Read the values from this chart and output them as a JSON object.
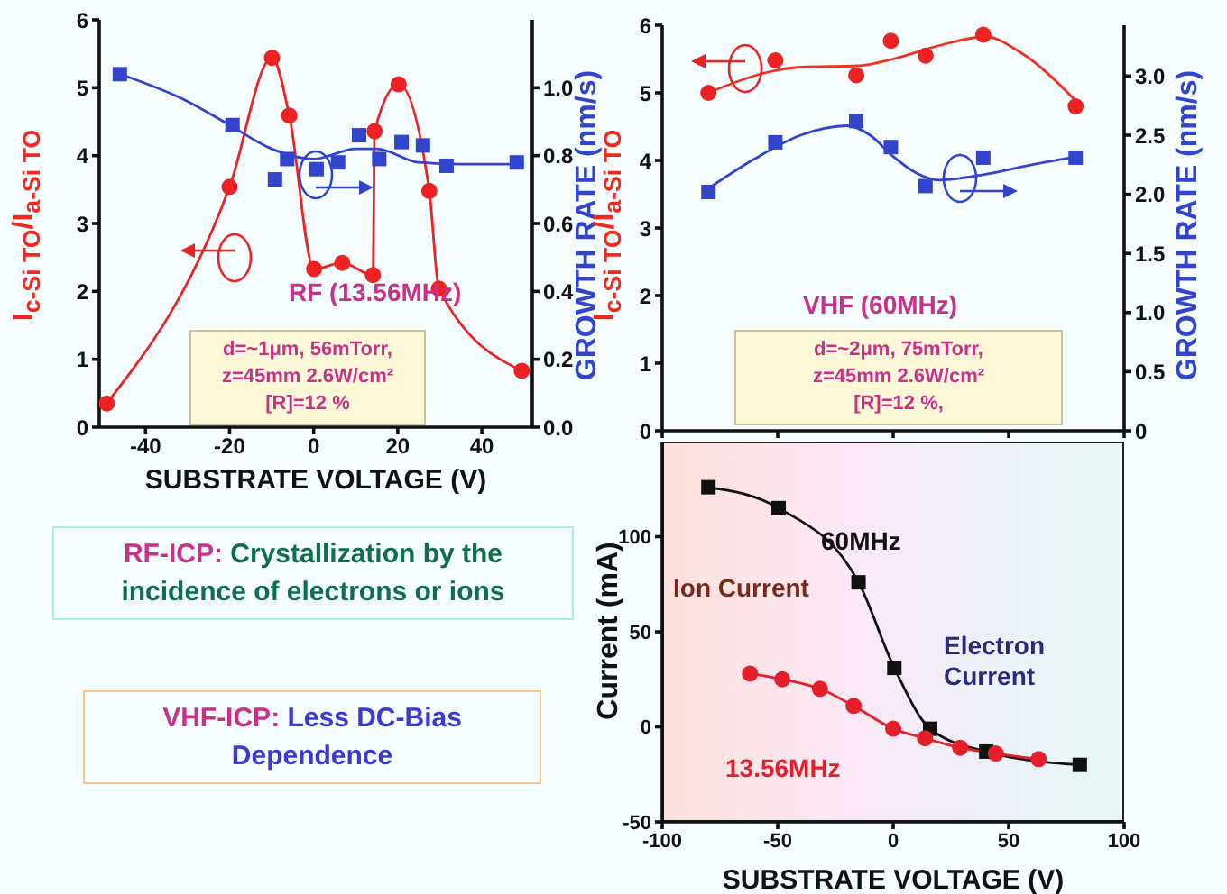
{
  "chart_data": [
    {
      "type": "line",
      "xlabel": "SUBSTRATE VOLTAGE (V)",
      "ylabel": "I$_{c-Si TO}$/I$_{a-Si TO}$",
      "y2label": "GROWTH RATE (nm/s)",
      "xlim": [
        -51,
        52
      ],
      "xticks": [
        -40,
        -20,
        0,
        20,
        40
      ],
      "ylim": [
        0,
        6
      ],
      "yticks": [
        0,
        1,
        2,
        3,
        4,
        5,
        6
      ],
      "y2lim": [
        0,
        1.2
      ],
      "y2ticks": [
        {
          "value": 0,
          "label": "0.0"
        },
        0.2,
        0.4,
        0.6,
        0.8,
        {
          "value": 1,
          "label": "1.0"
        }
      ],
      "series": [
        {
          "type": "line",
          "marker": "circle",
          "color": "#ee2222",
          "x": [
            -49.2,
            -20,
            -9.9,
            -5.8,
            0.1,
            6.8,
            14.1,
            14.5,
            20.2,
            27.5,
            29.8,
            49.5
          ],
          "values": [
            0.35,
            3.54,
            5.44,
            4.59,
            2.33,
            2.42,
            2.24,
            4.36,
            5.05,
            3.48,
            2.04,
            0.83
          ]
        },
        {
          "type": "scatter",
          "marker": "square",
          "axis": "y2",
          "color": "#3344cc",
          "x": [
            -46.1,
            -19.3,
            -9.2,
            -6.3,
            0.7,
            5.8,
            10.8,
            15.6,
            20.9,
            26,
            31.6,
            48.3
          ],
          "values": [
            1.04,
            0.89,
            0.73,
            0.79,
            0.76,
            0.78,
            0.86,
            0.79,
            0.84,
            0.83,
            0.77,
            0.78
          ]
        },
        {
          "type": "line",
          "marker": "none",
          "axis": "y2",
          "color": "#3344cc",
          "x": [
            -46,
            -30,
            -20,
            -10,
            0,
            10,
            15,
            25,
            35,
            50
          ],
          "values": [
            1.04,
            0.96,
            0.89,
            0.82,
            0.79,
            0.82,
            0.82,
            0.78,
            0.775,
            0.775
          ]
        }
      ],
      "annotations": [
        "RF (13.56MHz)",
        "d=~1μm, 56mTorr,\nz=45mm 2.6W/cm²\n[R]=12 %"
      ]
    },
    {
      "type": "line",
      "ylabel": "I$_{c-Si TO}$/I$_{a-Si TO}$",
      "y2label": "GROWTH RATE (nm/s)",
      "tick_labels": "y",
      "xlim": [
        -100,
        100
      ],
      "xticks": [
        -100,
        -50,
        0,
        50,
        100
      ],
      "ylim": [
        0,
        6
      ],
      "yticks": [
        0,
        1,
        2,
        3,
        4,
        5,
        6
      ],
      "y2lim": [
        0,
        3.43
      ],
      "y2ticks": [
        0,
        0.5,
        {
          "value": 1,
          "label": "1.0"
        },
        1.5,
        {
          "value": 2,
          "label": "2.0"
        },
        2.5,
        {
          "value": 3,
          "label": "3.0"
        }
      ],
      "series": [
        {
          "type": "scatter",
          "marker": "circle",
          "color": "#ee2222",
          "x": [
            -80,
            -51,
            -16,
            -1,
            14,
            39,
            79
          ],
          "values": [
            5.0,
            5.48,
            5.26,
            5.77,
            5.55,
            5.86,
            4.8
          ]
        },
        {
          "type": "line",
          "marker": "none",
          "color": "#ee3322",
          "x": [
            -80,
            -55,
            -40,
            -15,
            0,
            20,
            40,
            55,
            80
          ],
          "values": [
            5.0,
            5.3,
            5.38,
            5.4,
            5.5,
            5.7,
            5.83,
            5.6,
            4.85
          ]
        },
        {
          "type": "scatter",
          "marker": "square",
          "axis": "y2",
          "color": "#3344cc",
          "x": [
            -80,
            -51,
            -16,
            -1,
            14,
            39,
            79
          ],
          "values": [
            2.02,
            2.44,
            2.62,
            2.4,
            2.07,
            2.31,
            2.31
          ]
        },
        {
          "type": "line",
          "marker": "none",
          "axis": "y2",
          "color": "#3344cc",
          "x": [
            -80,
            -60,
            -40,
            -20,
            -10,
            0,
            10,
            20,
            40,
            60,
            80
          ],
          "values": [
            2.05,
            2.3,
            2.5,
            2.58,
            2.5,
            2.32,
            2.18,
            2.12,
            2.17,
            2.25,
            2.32
          ]
        }
      ],
      "annotations": [
        "VHF (60MHz)",
        "d=~2μm, 75mTorr,\nz=45mm 2.6W/cm²\n[R]=12 %,"
      ]
    },
    {
      "type": "line",
      "xlabel": "SUBSTRATE VOLTAGE (V)",
      "ylabel": "Current (mA)",
      "xlim": [
        -100,
        100
      ],
      "xticks": [
        -100,
        -50,
        0,
        50,
        100
      ],
      "ylim": [
        -50,
        150
      ],
      "yticks": [
        -50,
        0,
        50,
        100
      ],
      "series": [
        {
          "name": "60MHz",
          "marker": "square",
          "color": "#111111",
          "x": [
            -80,
            -49.6,
            -15,
            0.5,
            16,
            40.3,
            80.8
          ],
          "values": [
            126,
            115,
            76,
            31,
            -1,
            -13,
            -20
          ]
        },
        {
          "name": "13.56MHz",
          "marker": "circle",
          "color": "#e3202a",
          "x": [
            -62,
            -48,
            -31.7,
            -17.1,
            0,
            13.8,
            29,
            44.4,
            63
          ],
          "values": [
            28,
            25,
            20,
            11,
            -1,
            -6,
            -11,
            -14,
            -17
          ]
        }
      ],
      "annotations": [
        "Ion Current",
        "Electron Current"
      ]
    },
    {
      "type": "other",
      "annotations": [
        "RF-ICP: Crystallization by the incidence of electrons or ions",
        "VHF-ICP: Less DC-Bias Dependence"
      ]
    }
  ]
}
